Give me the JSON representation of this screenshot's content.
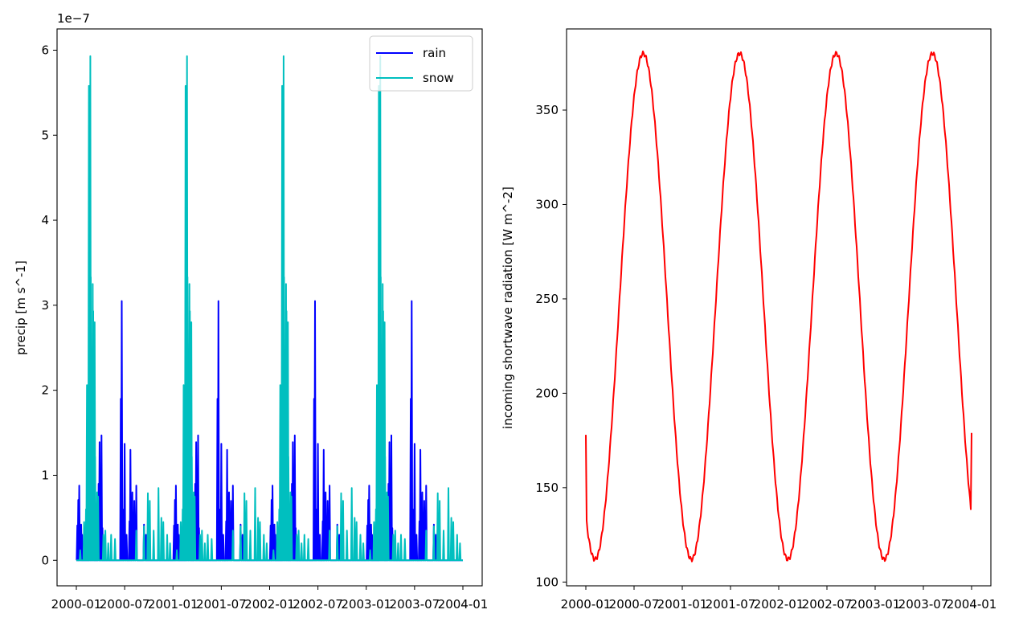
{
  "chart_data": [
    {
      "type": "line",
      "ylabel": "precip [m s^-1]",
      "offset_text": "1e−7",
      "ylim": [
        -0.3,
        6.25
      ],
      "yticks": [
        0,
        1,
        2,
        3,
        4,
        5,
        6
      ],
      "xticks": [
        "2000-01",
        "2000-07",
        "2001-01",
        "2001-07",
        "2002-01",
        "2002-07",
        "2003-01",
        "2003-07",
        "2004-01"
      ],
      "legend": {
        "placement": "upper-right",
        "entries": [
          "rain",
          "snow"
        ]
      },
      "colors": {
        "rain": "#0000ff",
        "snow": "#00bfbf"
      },
      "series": [
        {
          "name": "rain",
          "color": "#0000ff",
          "peaks": [
            [
              0.01,
              0.41
            ],
            [
              0.02,
              0.71
            ],
            [
              0.03,
              0.88
            ],
            [
              0.05,
              0.42
            ],
            [
              0.06,
              0.3
            ],
            [
              0.14,
              0.6
            ],
            [
              0.15,
              1.22
            ],
            [
              0.17,
              1.08
            ],
            [
              0.18,
              0.6
            ],
            [
              0.23,
              0.9
            ],
            [
              0.24,
              1.39
            ],
            [
              0.25,
              0.75
            ],
            [
              0.26,
              1.47
            ],
            [
              0.27,
              0.38
            ],
            [
              0.28,
              0.28
            ],
            [
              0.46,
              1.9
            ],
            [
              0.47,
              3.05
            ],
            [
              0.48,
              0.6
            ],
            [
              0.5,
              1.37
            ],
            [
              0.52,
              0.3
            ],
            [
              0.55,
              0.46
            ],
            [
              0.56,
              1.3
            ],
            [
              0.58,
              0.8
            ],
            [
              0.6,
              0.7
            ],
            [
              0.62,
              0.88
            ],
            [
              0.7,
              0.42
            ],
            [
              0.72,
              0.3
            ]
          ]
        },
        {
          "name": "snow",
          "color": "#00bfbf",
          "peaks": [
            [
              0.04,
              0.12
            ],
            [
              0.08,
              0.45
            ],
            [
              0.1,
              0.6
            ],
            [
              0.11,
              2.06
            ],
            [
              0.12,
              1.15
            ],
            [
              0.125,
              1.45
            ],
            [
              0.13,
              5.58
            ],
            [
              0.135,
              1.7
            ],
            [
              0.14,
              3.92
            ],
            [
              0.145,
              5.93
            ],
            [
              0.15,
              3.33
            ],
            [
              0.155,
              0.55
            ],
            [
              0.16,
              2.34
            ],
            [
              0.165,
              1.4
            ],
            [
              0.17,
              3.25
            ],
            [
              0.175,
              2.93
            ],
            [
              0.18,
              2.37
            ],
            [
              0.19,
              2.8
            ],
            [
              0.195,
              1.22
            ],
            [
              0.205,
              0.6
            ],
            [
              0.215,
              0.8
            ],
            [
              0.225,
              0.75
            ],
            [
              0.28,
              0.3
            ],
            [
              0.3,
              0.35
            ],
            [
              0.33,
              0.2
            ],
            [
              0.36,
              0.3
            ],
            [
              0.4,
              0.25
            ],
            [
              0.62,
              0.35
            ],
            [
              0.7,
              0.4
            ],
            [
              0.74,
              0.79
            ],
            [
              0.76,
              0.7
            ],
            [
              0.8,
              0.35
            ],
            [
              0.85,
              0.85
            ],
            [
              0.88,
              0.5
            ],
            [
              0.9,
              0.45
            ],
            [
              0.94,
              0.3
            ],
            [
              0.97,
              0.2
            ]
          ]
        }
      ]
    },
    {
      "type": "line",
      "ylabel": "incoming shortwave radiation [W m^-2]",
      "ylim": [
        98,
        393
      ],
      "yticks": [
        100,
        150,
        200,
        250,
        300,
        350
      ],
      "xticks": [
        "2000-01",
        "2000-07",
        "2001-01",
        "2001-07",
        "2002-01",
        "2002-07",
        "2003-01",
        "2003-07",
        "2004-01"
      ],
      "series": [
        {
          "name": "",
          "color": "#ff0000",
          "annual_cycle": {
            "start": 178,
            "min": 112,
            "min_phase": 0.095,
            "max": 380,
            "max_phase": 0.6,
            "end": 179
          }
        }
      ]
    }
  ]
}
